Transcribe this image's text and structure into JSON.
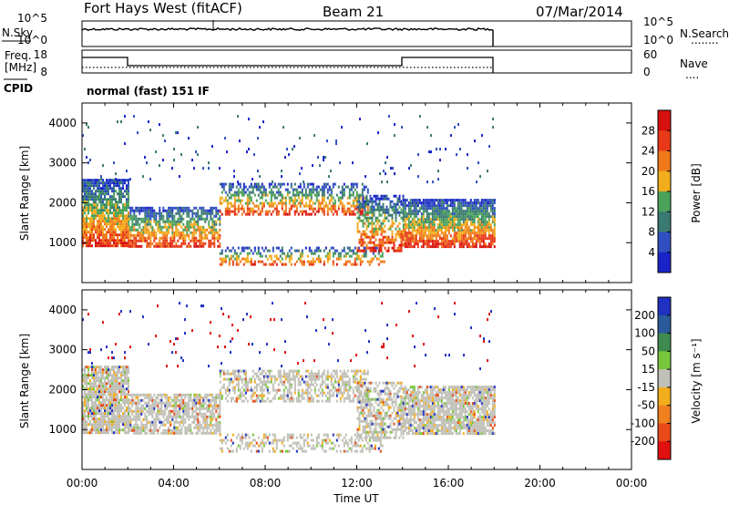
{
  "header": {
    "radar": "Fort Hays West (fitACF)",
    "beam": "Beam 21",
    "date": "07/Mar/2014"
  },
  "nsky_panel": {
    "left_label": "N.Sky",
    "right_label": "N.Search",
    "left_ticks": [
      "10^5",
      "10^0"
    ],
    "right_ticks": [
      "10^5",
      "10^0"
    ],
    "right_legend_symbol": "........"
  },
  "freq_panel": {
    "left_label_line1": "Freq.",
    "left_label_line2": "[MHz]",
    "left_ticks": [
      "18",
      "8"
    ],
    "right_label": "Nave",
    "right_ticks": [
      "60",
      "0"
    ],
    "right_legend_symbol": "...."
  },
  "cpid": {
    "label": "CPID",
    "value": "normal (fast) 151 IF"
  },
  "colors": {
    "power_scale": [
      "#1a23c8",
      "#2f4fc0",
      "#3b7a72",
      "#4aa25a",
      "#f2ad1c",
      "#f07a1a",
      "#e83a18",
      "#d81010"
    ],
    "velocity_scale": [
      "#2030c0",
      "#2a5a9a",
      "#3f8b4f",
      "#77c63b",
      "#c0c0b8",
      "#f2ad1c",
      "#f08020",
      "#e84a18",
      "#e01010"
    ]
  },
  "chart_data": [
    {
      "type": "heatmap",
      "name_panel": "power",
      "ylabel": "Slant Range [km]",
      "xlabel": "",
      "x_ticks": [
        "00:00",
        "04:00",
        "08:00",
        "12:00",
        "16:00",
        "20:00",
        "00:00"
      ],
      "y_ticks": [
        "1000",
        "2000",
        "3000",
        "4000"
      ],
      "xlim_hours": [
        0,
        24
      ],
      "ylim_km": [
        0,
        4500
      ],
      "colorbar": {
        "label": "Power [dB]",
        "ticks": [
          "4",
          "8",
          "12",
          "16",
          "20",
          "24",
          "28"
        ],
        "range": [
          0,
          32
        ]
      },
      "scatter_bands": [
        {
          "t0": 0.0,
          "t1": 2.0,
          "r0": 900,
          "r1": 2600,
          "coverage": 0.85
        },
        {
          "t0": 2.0,
          "t1": 6.0,
          "r0": 900,
          "r1": 1900,
          "coverage": 0.75
        },
        {
          "t0": 6.0,
          "t1": 12.5,
          "r0": 1700,
          "r1": 2500,
          "coverage": 0.55
        },
        {
          "t0": 6.0,
          "t1": 13.2,
          "r0": 450,
          "r1": 900,
          "coverage": 0.45
        },
        {
          "t0": 12.0,
          "t1": 14.0,
          "r0": 800,
          "r1": 2200,
          "coverage": 0.6
        },
        {
          "t0": 14.0,
          "t1": 18.0,
          "r0": 900,
          "r1": 2100,
          "coverage": 0.85
        },
        {
          "t0": 0.0,
          "t1": 18.0,
          "r0": 2500,
          "r1": 4200,
          "coverage": 0.02
        }
      ]
    },
    {
      "type": "heatmap",
      "name_panel": "velocity",
      "ylabel": "Slant Range [km]",
      "xlabel": "Time UT",
      "x_ticks": [
        "00:00",
        "04:00",
        "08:00",
        "12:00",
        "16:00",
        "20:00",
        "00:00"
      ],
      "y_ticks": [
        "1000",
        "2000",
        "3000",
        "4000"
      ],
      "xlim_hours": [
        0,
        24
      ],
      "ylim_km": [
        0,
        4500
      ],
      "colorbar": {
        "label": "Velocity [m s⁻¹]",
        "ticks": [
          "200",
          "100",
          "50",
          "15",
          "-15",
          "-50",
          "-100",
          "-200"
        ],
        "range": [
          -250,
          250
        ]
      },
      "scatter_bands": [
        {
          "t0": 0.0,
          "t1": 2.0,
          "r0": 900,
          "r1": 2600,
          "coverage": 0.85
        },
        {
          "t0": 2.0,
          "t1": 6.0,
          "r0": 900,
          "r1": 1900,
          "coverage": 0.75
        },
        {
          "t0": 6.0,
          "t1": 12.5,
          "r0": 1700,
          "r1": 2500,
          "coverage": 0.55
        },
        {
          "t0": 6.0,
          "t1": 13.2,
          "r0": 450,
          "r1": 900,
          "coverage": 0.45
        },
        {
          "t0": 12.0,
          "t1": 14.0,
          "r0": 800,
          "r1": 2200,
          "coverage": 0.6
        },
        {
          "t0": 14.0,
          "t1": 18.0,
          "r0": 900,
          "r1": 2100,
          "coverage": 0.85
        },
        {
          "t0": 0.0,
          "t1": 18.0,
          "r0": 2500,
          "r1": 4200,
          "coverage": 0.02
        }
      ]
    }
  ]
}
